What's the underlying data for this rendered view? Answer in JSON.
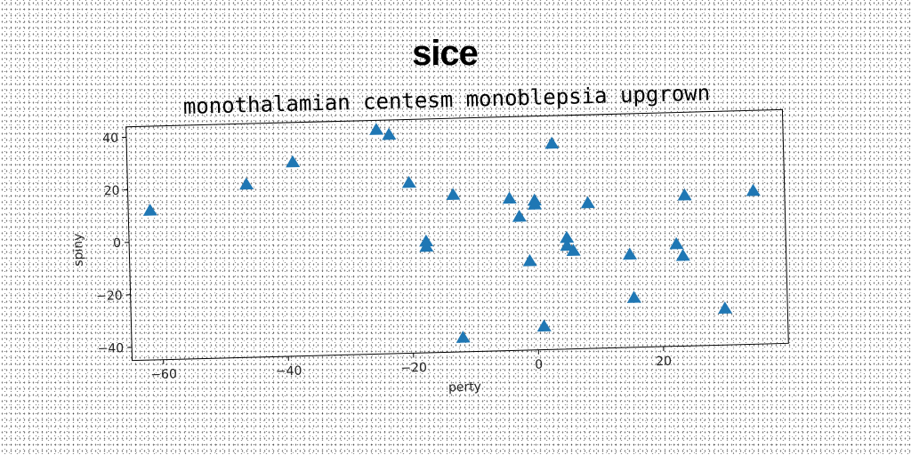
{
  "title": "sice",
  "chart_data": {
    "type": "scatter",
    "subtitle": "monothalamian centesm monoblepsia upgrown",
    "xlabel": "perty",
    "ylabel": "spiny",
    "xlim": [
      -65,
      40
    ],
    "ylim": [
      -45,
      44
    ],
    "x_ticks": [
      -60,
      -40,
      -20,
      0,
      20
    ],
    "y_ticks": [
      -40,
      -20,
      0,
      20,
      40
    ],
    "marker": "triangle-up",
    "color": "#1f77b4",
    "grid": false,
    "points": [
      {
        "x": -61.5,
        "y": 12
      },
      {
        "x": -46,
        "y": 21
      },
      {
        "x": -38.5,
        "y": 29
      },
      {
        "x": -25,
        "y": 40.5
      },
      {
        "x": -23,
        "y": 38.5
      },
      {
        "x": -20,
        "y": 20
      },
      {
        "x": -17.5,
        "y": -2.5
      },
      {
        "x": -17.5,
        "y": -4.5
      },
      {
        "x": -13,
        "y": 15
      },
      {
        "x": -12,
        "y": -39.5
      },
      {
        "x": -4,
        "y": 13
      },
      {
        "x": -2.5,
        "y": 6
      },
      {
        "x": -1,
        "y": -11
      },
      {
        "x": 0,
        "y": 12
      },
      {
        "x": 0,
        "y": 10.5
      },
      {
        "x": 1,
        "y": -36
      },
      {
        "x": 3,
        "y": 33.5
      },
      {
        "x": 5,
        "y": -2.5
      },
      {
        "x": 5,
        "y": -5.5
      },
      {
        "x": 6,
        "y": -7.5
      },
      {
        "x": 8.5,
        "y": 10.5
      },
      {
        "x": 15,
        "y": -9.5
      },
      {
        "x": 15.5,
        "y": -26
      },
      {
        "x": 22.5,
        "y": -6
      },
      {
        "x": 23.5,
        "y": -10.5
      },
      {
        "x": 24,
        "y": 12.5
      },
      {
        "x": 30,
        "y": -31
      },
      {
        "x": 35,
        "y": 13.5
      }
    ]
  }
}
